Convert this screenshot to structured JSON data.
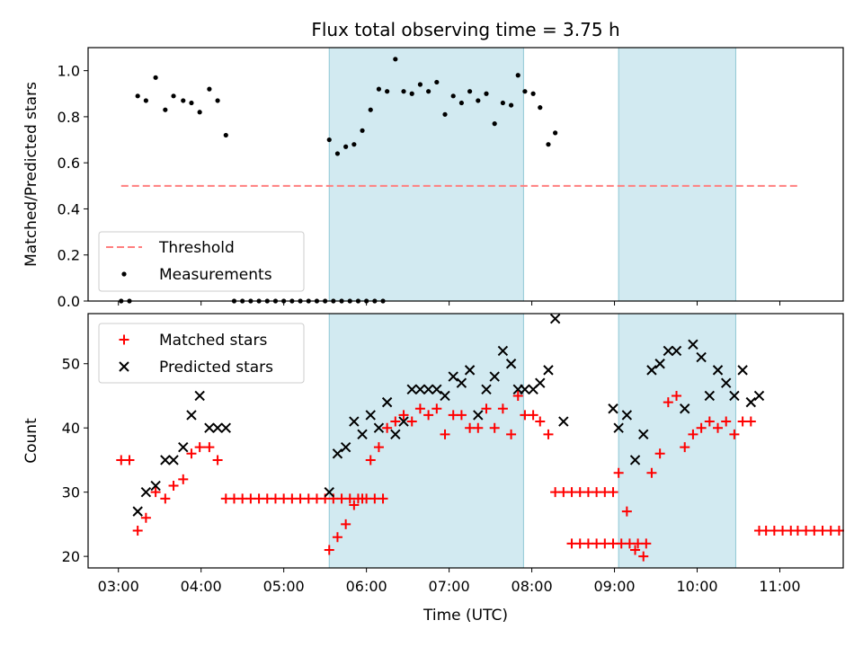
{
  "title": "Flux total observing time = 3.75 h",
  "colors": {
    "threshold": "#ff7f7f",
    "measurements": "#000000",
    "matched": "#ff0000",
    "predicted": "#000000",
    "shade_fill": "#add8e6",
    "shade_edge": "#8fc8d4"
  },
  "chart_data": [
    {
      "type": "scatter",
      "panel": "top",
      "ylabel": "Matched/Predicted stars",
      "ylim": [
        0,
        1.1
      ],
      "yticks": [
        0.0,
        0.2,
        0.4,
        0.6,
        0.8,
        1.0
      ],
      "ytick_labels": [
        "0.0",
        "0.2",
        "0.4",
        "0.6",
        "0.8",
        "1.0"
      ],
      "xlim": [
        "02:38",
        "11:46"
      ],
      "shaded_intervals": [
        [
          "05:33",
          "07:54"
        ],
        [
          "09:03",
          "10:28"
        ]
      ],
      "threshold": {
        "label": "Threshold",
        "value": 0.5,
        "x_range": [
          "03:02",
          "11:13"
        ],
        "style": "dashed"
      },
      "legend": {
        "position": "lower-left",
        "entries": [
          "Threshold",
          "Measurements"
        ]
      },
      "series": [
        {
          "name": "Measurements",
          "marker": "dot",
          "points": [
            [
              "03:02",
              0.0
            ],
            [
              "03:08",
              0.0
            ],
            [
              "03:14",
              0.89
            ],
            [
              "03:20",
              0.87
            ],
            [
              "03:27",
              0.97
            ],
            [
              "03:34",
              0.83
            ],
            [
              "03:40",
              0.89
            ],
            [
              "03:47",
              0.87
            ],
            [
              "03:53",
              0.86
            ],
            [
              "03:59",
              0.82
            ],
            [
              "04:06",
              0.92
            ],
            [
              "04:12",
              0.87
            ],
            [
              "04:18",
              0.72
            ],
            [
              "04:24",
              0.0
            ],
            [
              "04:30",
              0.0
            ],
            [
              "04:36",
              0.0
            ],
            [
              "04:42",
              0.0
            ],
            [
              "04:48",
              0.0
            ],
            [
              "04:54",
              0.0
            ],
            [
              "05:00",
              0.0
            ],
            [
              "05:06",
              0.0
            ],
            [
              "05:12",
              0.0
            ],
            [
              "05:18",
              0.0
            ],
            [
              "05:24",
              0.0
            ],
            [
              "05:30",
              0.0
            ],
            [
              "05:36",
              0.0
            ],
            [
              "05:42",
              0.0
            ],
            [
              "05:48",
              0.0
            ],
            [
              "05:54",
              0.0
            ],
            [
              "06:00",
              0.0
            ],
            [
              "06:06",
              0.0
            ],
            [
              "06:12",
              0.0
            ],
            [
              "05:33",
              0.7
            ],
            [
              "05:39",
              0.64
            ],
            [
              "05:45",
              0.67
            ],
            [
              "05:51",
              0.68
            ],
            [
              "05:57",
              0.74
            ],
            [
              "06:03",
              0.83
            ],
            [
              "06:09",
              0.92
            ],
            [
              "06:15",
              0.91
            ],
            [
              "06:21",
              1.05
            ],
            [
              "06:27",
              0.91
            ],
            [
              "06:33",
              0.9
            ],
            [
              "06:39",
              0.94
            ],
            [
              "06:45",
              0.91
            ],
            [
              "06:51",
              0.95
            ],
            [
              "06:57",
              0.81
            ],
            [
              "07:03",
              0.89
            ],
            [
              "07:09",
              0.86
            ],
            [
              "07:15",
              0.91
            ],
            [
              "07:21",
              0.87
            ],
            [
              "07:27",
              0.9
            ],
            [
              "07:33",
              0.77
            ],
            [
              "07:39",
              0.86
            ],
            [
              "07:45",
              0.85
            ],
            [
              "07:50",
              0.98
            ],
            [
              "07:55",
              0.91
            ],
            [
              "08:01",
              0.9
            ],
            [
              "08:06",
              0.84
            ],
            [
              "08:12",
              0.68
            ],
            [
              "08:17",
              0.73
            ]
          ]
        }
      ]
    },
    {
      "type": "scatter",
      "panel": "bottom",
      "xlabel": "Time (UTC)",
      "ylabel": "Count",
      "ylim": [
        18.2,
        57.8
      ],
      "yticks": [
        20,
        30,
        40,
        50
      ],
      "ytick_labels": [
        "20",
        "30",
        "40",
        "50"
      ],
      "xticks": [
        "03:00",
        "04:00",
        "05:00",
        "06:00",
        "07:00",
        "08:00",
        "09:00",
        "10:00",
        "11:00"
      ],
      "xtick_labels": [
        "03:00",
        "04:00",
        "05:00",
        "06:00",
        "07:00",
        "08:00",
        "09:00",
        "10:00",
        "11:00"
      ],
      "xlim": [
        "02:38",
        "11:46"
      ],
      "shaded_intervals": [
        [
          "05:33",
          "07:54"
        ],
        [
          "09:03",
          "10:28"
        ]
      ],
      "legend": {
        "position": "top-left",
        "entries": [
          "Matched stars",
          "Predicted stars"
        ]
      },
      "series": [
        {
          "name": "Matched stars",
          "marker": "plus",
          "points": [
            [
              "03:02",
              35
            ],
            [
              "03:08",
              35
            ],
            [
              "03:14",
              24
            ],
            [
              "03:20",
              26
            ],
            [
              "03:27",
              30
            ],
            [
              "03:34",
              29
            ],
            [
              "03:40",
              31
            ],
            [
              "03:47",
              32
            ],
            [
              "03:53",
              36
            ],
            [
              "03:59",
              37
            ],
            [
              "04:06",
              37
            ],
            [
              "04:12",
              35
            ],
            [
              "04:18",
              29
            ],
            [
              "04:24",
              29
            ],
            [
              "04:30",
              29
            ],
            [
              "04:36",
              29
            ],
            [
              "04:42",
              29
            ],
            [
              "04:48",
              29
            ],
            [
              "04:54",
              29
            ],
            [
              "05:00",
              29
            ],
            [
              "05:06",
              29
            ],
            [
              "05:12",
              29
            ],
            [
              "05:18",
              29
            ],
            [
              "05:24",
              29
            ],
            [
              "05:30",
              29
            ],
            [
              "05:36",
              29
            ],
            [
              "05:42",
              29
            ],
            [
              "05:48",
              29
            ],
            [
              "05:54",
              29
            ],
            [
              "06:00",
              29
            ],
            [
              "06:06",
              29
            ],
            [
              "06:12",
              29
            ],
            [
              "05:33",
              21
            ],
            [
              "05:39",
              23
            ],
            [
              "05:45",
              25
            ],
            [
              "05:51",
              28
            ],
            [
              "05:57",
              29
            ],
            [
              "06:03",
              35
            ],
            [
              "06:09",
              37
            ],
            [
              "06:15",
              40
            ],
            [
              "06:21",
              41
            ],
            [
              "06:27",
              42
            ],
            [
              "06:33",
              41
            ],
            [
              "06:39",
              43
            ],
            [
              "06:45",
              42
            ],
            [
              "06:51",
              43
            ],
            [
              "06:57",
              39
            ],
            [
              "07:03",
              42
            ],
            [
              "07:09",
              42
            ],
            [
              "07:15",
              40
            ],
            [
              "07:21",
              40
            ],
            [
              "07:27",
              43
            ],
            [
              "07:33",
              40
            ],
            [
              "07:39",
              43
            ],
            [
              "07:45",
              39
            ],
            [
              "07:50",
              45
            ],
            [
              "07:55",
              42
            ],
            [
              "08:01",
              42
            ],
            [
              "08:06",
              41
            ],
            [
              "08:12",
              39
            ],
            [
              "08:17",
              30
            ],
            [
              "08:23",
              30
            ],
            [
              "08:29",
              30
            ],
            [
              "08:35",
              30
            ],
            [
              "08:41",
              30
            ],
            [
              "08:47",
              30
            ],
            [
              "08:53",
              30
            ],
            [
              "08:59",
              30
            ],
            [
              "08:29",
              22
            ],
            [
              "08:35",
              22
            ],
            [
              "08:41",
              22
            ],
            [
              "08:47",
              22
            ],
            [
              "08:53",
              22
            ],
            [
              "08:59",
              22
            ],
            [
              "09:05",
              22
            ],
            [
              "09:11",
              22
            ],
            [
              "09:17",
              22
            ],
            [
              "09:23",
              22
            ],
            [
              "09:03",
              33
            ],
            [
              "09:09",
              27
            ],
            [
              "09:15",
              21
            ],
            [
              "09:21",
              20
            ],
            [
              "09:27",
              33
            ],
            [
              "09:33",
              36
            ],
            [
              "09:39",
              44
            ],
            [
              "09:45",
              45
            ],
            [
              "09:51",
              37
            ],
            [
              "09:57",
              39
            ],
            [
              "10:03",
              40
            ],
            [
              "10:09",
              41
            ],
            [
              "10:15",
              40
            ],
            [
              "10:21",
              41
            ],
            [
              "10:27",
              39
            ],
            [
              "10:33",
              41
            ],
            [
              "10:39",
              41
            ],
            [
              "10:45",
              24
            ],
            [
              "10:50",
              24
            ],
            [
              "10:56",
              24
            ],
            [
              "11:02",
              24
            ],
            [
              "11:08",
              24
            ],
            [
              "11:13",
              24
            ],
            [
              "11:19",
              24
            ],
            [
              "11:25",
              24
            ],
            [
              "11:31",
              24
            ],
            [
              "11:37",
              24
            ],
            [
              "11:43",
              24
            ]
          ]
        },
        {
          "name": "Predicted stars",
          "marker": "x",
          "points": [
            [
              "03:14",
              27
            ],
            [
              "03:20",
              30
            ],
            [
              "03:27",
              31
            ],
            [
              "03:34",
              35
            ],
            [
              "03:40",
              35
            ],
            [
              "03:47",
              37
            ],
            [
              "03:53",
              42
            ],
            [
              "03:59",
              45
            ],
            [
              "04:06",
              40
            ],
            [
              "04:12",
              40
            ],
            [
              "04:18",
              40
            ],
            [
              "05:33",
              30
            ],
            [
              "05:39",
              36
            ],
            [
              "05:45",
              37
            ],
            [
              "05:51",
              41
            ],
            [
              "05:57",
              39
            ],
            [
              "06:03",
              42
            ],
            [
              "06:09",
              40
            ],
            [
              "06:15",
              44
            ],
            [
              "06:21",
              39
            ],
            [
              "06:27",
              41
            ],
            [
              "06:33",
              46
            ],
            [
              "06:39",
              46
            ],
            [
              "06:45",
              46
            ],
            [
              "06:51",
              46
            ],
            [
              "06:57",
              45
            ],
            [
              "07:03",
              48
            ],
            [
              "07:09",
              47
            ],
            [
              "07:15",
              49
            ],
            [
              "07:21",
              42
            ],
            [
              "07:27",
              46
            ],
            [
              "07:33",
              48
            ],
            [
              "07:39",
              52
            ],
            [
              "07:45",
              50
            ],
            [
              "07:50",
              46
            ],
            [
              "07:55",
              46
            ],
            [
              "08:01",
              46
            ],
            [
              "08:06",
              47
            ],
            [
              "08:12",
              49
            ],
            [
              "08:17",
              57
            ],
            [
              "08:23",
              41
            ],
            [
              "08:59",
              43
            ],
            [
              "09:03",
              40
            ],
            [
              "09:09",
              42
            ],
            [
              "09:15",
              35
            ],
            [
              "09:21",
              39
            ],
            [
              "09:27",
              49
            ],
            [
              "09:33",
              50
            ],
            [
              "09:39",
              52
            ],
            [
              "09:45",
              52
            ],
            [
              "09:51",
              43
            ],
            [
              "09:57",
              53
            ],
            [
              "10:03",
              51
            ],
            [
              "10:09",
              45
            ],
            [
              "10:15",
              49
            ],
            [
              "10:21",
              47
            ],
            [
              "10:27",
              45
            ],
            [
              "10:33",
              49
            ],
            [
              "10:39",
              44
            ],
            [
              "10:45",
              45
            ]
          ]
        }
      ]
    }
  ]
}
